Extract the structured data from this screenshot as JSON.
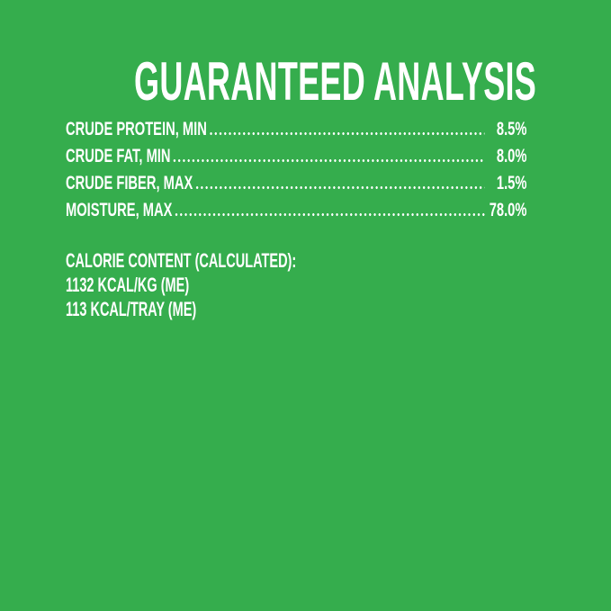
{
  "colors": {
    "background": "#35AD4D",
    "text": "#FFFFFF"
  },
  "title": "GUARANTEED ANALYSIS",
  "analysis": {
    "rows": [
      {
        "label": "CRUDE PROTEIN, MIN",
        "value": "8.5%"
      },
      {
        "label": "CRUDE FAT, MIN",
        "value": "8.0%"
      },
      {
        "label": "CRUDE FIBER, MAX",
        "value": "1.5%"
      },
      {
        "label": "MOISTURE, MAX",
        "value": "78.0%"
      }
    ]
  },
  "calorie_content": {
    "heading": "CALORIE CONTENT (CALCULATED):",
    "lines": [
      "1132 KCAL/KG (ME)",
      "113 KCAL/TRAY (ME)"
    ]
  }
}
